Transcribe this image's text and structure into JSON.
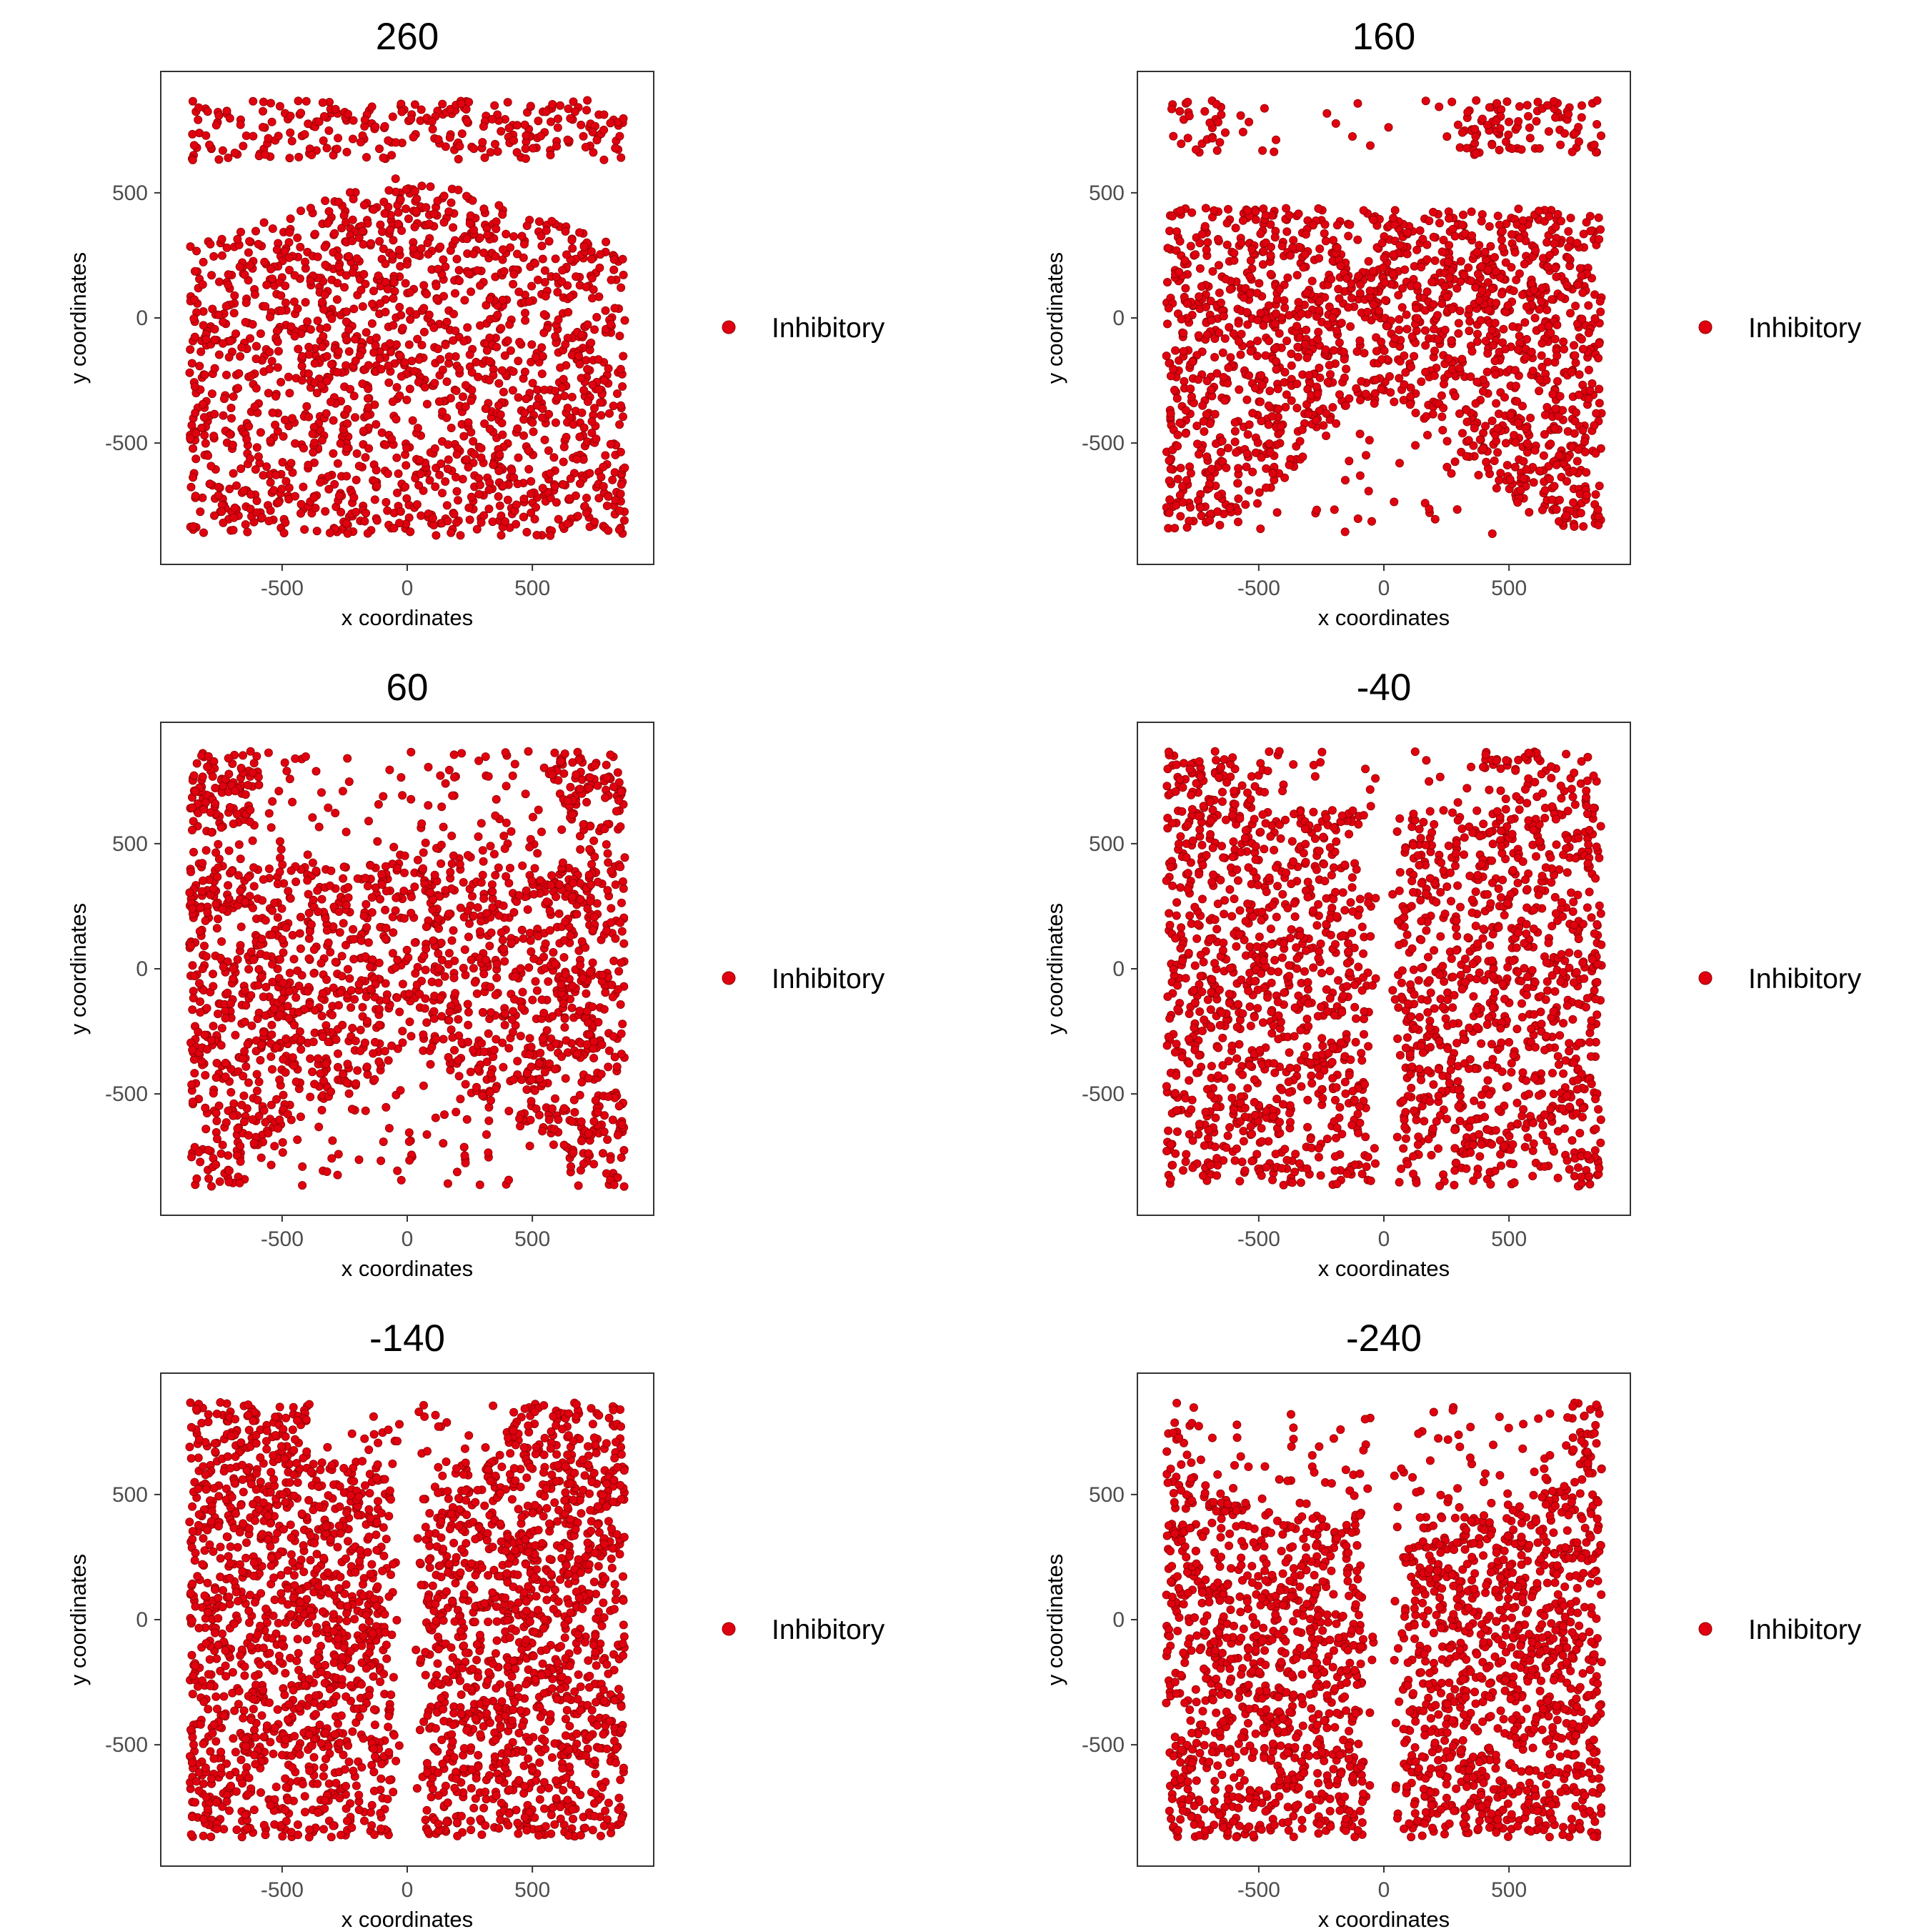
{
  "figure": {
    "point_color": "#E0000F",
    "point_stroke": "#8A0000",
    "axis_color": "#333333",
    "tick_label_color": "#4D4D4D"
  },
  "chart_data": [
    {
      "type": "scatter",
      "title": "260",
      "xlabel": "x coordinates",
      "ylabel": "y coordinates",
      "xlim": [
        -985,
        985
      ],
      "ylim": [
        -985,
        985
      ],
      "xticks": [
        -500,
        0,
        500
      ],
      "yticks": [
        -500,
        0,
        500
      ],
      "xtick_labels": [
        "-500",
        "0",
        "500"
      ],
      "ytick_labels": [
        "-500",
        "0",
        "500"
      ],
      "legend": {
        "entries": [
          "Inhibitory"
        ],
        "placement": "right"
      },
      "series": [
        {
          "name": "Inhibitory",
          "pattern": "v-shape"
        }
      ]
    },
    {
      "type": "scatter",
      "title": "160",
      "xlabel": "x coordinates",
      "ylabel": "y coordinates",
      "xlim": [
        -985,
        985
      ],
      "ylim": [
        -985,
        985
      ],
      "xticks": [
        -500,
        0,
        500
      ],
      "yticks": [
        -500,
        0,
        500
      ],
      "xtick_labels": [
        "-500",
        "0",
        "500"
      ],
      "ytick_labels": [
        "-500",
        "0",
        "500"
      ],
      "legend": {
        "entries": [
          "Inhibitory"
        ],
        "placement": "right"
      },
      "series": [
        {
          "name": "Inhibitory",
          "pattern": "band"
        }
      ]
    },
    {
      "type": "scatter",
      "title": "60",
      "xlabel": "x coordinates",
      "ylabel": "y coordinates",
      "xlim": [
        -985,
        985
      ],
      "ylim": [
        -985,
        985
      ],
      "xticks": [
        -500,
        0,
        500
      ],
      "yticks": [
        -500,
        0,
        500
      ],
      "xtick_labels": [
        "-500",
        "0",
        "500"
      ],
      "ytick_labels": [
        "-500",
        "0",
        "500"
      ],
      "legend": {
        "entries": [
          "Inhibitory"
        ],
        "placement": "right"
      },
      "series": [
        {
          "name": "Inhibitory",
          "pattern": "bowtie"
        }
      ]
    },
    {
      "type": "scatter",
      "title": "-40",
      "xlabel": "x coordinates",
      "ylabel": "y coordinates",
      "xlim": [
        -985,
        985
      ],
      "ylim": [
        -985,
        985
      ],
      "xticks": [
        -500,
        0,
        500
      ],
      "yticks": [
        -500,
        0,
        500
      ],
      "xtick_labels": [
        "-500",
        "0",
        "500"
      ],
      "ytick_labels": [
        "-500",
        "0",
        "500"
      ],
      "legend": {
        "entries": [
          "Inhibitory"
        ],
        "placement": "right"
      },
      "series": [
        {
          "name": "Inhibitory",
          "pattern": "split"
        }
      ]
    },
    {
      "type": "scatter",
      "title": "-140",
      "xlabel": "x coordinates",
      "ylabel": "y coordinates",
      "xlim": [
        -985,
        985
      ],
      "ylim": [
        -985,
        985
      ],
      "xticks": [
        -500,
        0,
        500
      ],
      "yticks": [
        -500,
        0,
        500
      ],
      "xtick_labels": [
        "-500",
        "0",
        "500"
      ],
      "ytick_labels": [
        "-500",
        "0",
        "500"
      ],
      "legend": {
        "entries": [
          "Inhibitory"
        ],
        "placement": "right"
      },
      "series": [
        {
          "name": "Inhibitory",
          "pattern": "split-dense"
        }
      ]
    },
    {
      "type": "scatter",
      "title": "-240",
      "xlabel": "x coordinates",
      "ylabel": "y coordinates",
      "xlim": [
        -985,
        985
      ],
      "ylim": [
        -985,
        985
      ],
      "xticks": [
        -500,
        0,
        500
      ],
      "yticks": [
        -500,
        0,
        500
      ],
      "xtick_labels": [
        "-500",
        "0",
        "500"
      ],
      "ytick_labels": [
        "-500",
        "0",
        "500"
      ],
      "legend": {
        "entries": [
          "Inhibitory"
        ],
        "placement": "right"
      },
      "series": [
        {
          "name": "Inhibitory",
          "pattern": "split-wing"
        }
      ]
    }
  ]
}
